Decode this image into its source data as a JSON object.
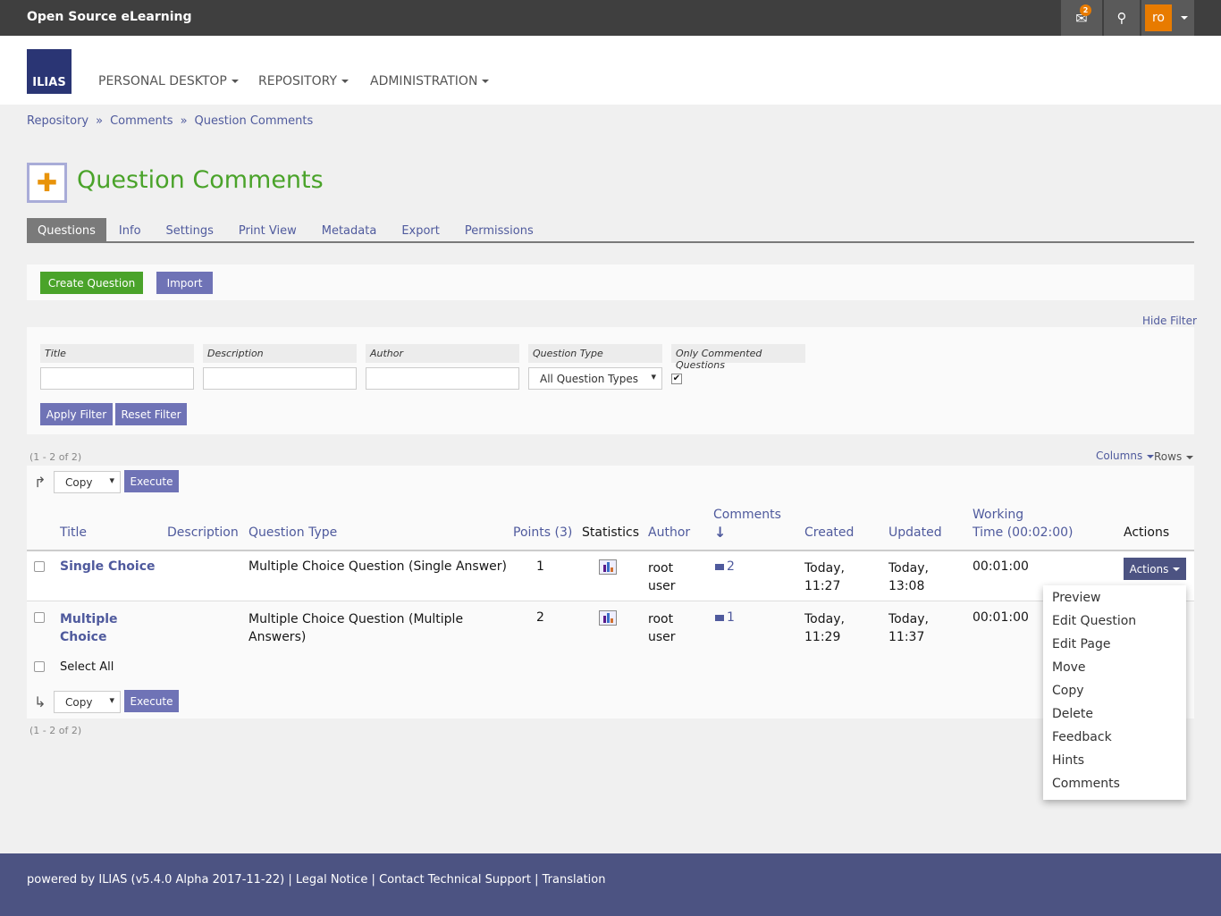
{
  "topbar": {
    "title": "Open Source eLearning",
    "mail_count": "2",
    "user_initials": "ro"
  },
  "header": {
    "logo": "ILIAS",
    "nav": [
      "PERSONAL DESKTOP",
      "REPOSITORY",
      "ADMINISTRATION"
    ]
  },
  "breadcrumb": [
    "Repository",
    "Comments",
    "Question Comments"
  ],
  "page": {
    "title": "Question Comments",
    "icon": "puzzle-icon"
  },
  "tabs": [
    "Questions",
    "Info",
    "Settings",
    "Print View",
    "Metadata",
    "Export",
    "Permissions"
  ],
  "toolbar": {
    "create": "Create Question",
    "import": "Import"
  },
  "filter": {
    "hide": "Hide Filter",
    "labels": [
      "Title",
      "Description",
      "Author",
      "Question Type",
      "Only Commented Questions"
    ],
    "values": [
      "",
      "",
      ""
    ],
    "question_type": "All Question Types",
    "only_commented": true,
    "apply": "Apply Filter",
    "reset": "Reset Filter"
  },
  "table": {
    "range": "(1 - 2 of 2)",
    "columns_link": "Columns",
    "rows_link": "Rows",
    "multi_action": "Copy",
    "execute": "Execute",
    "select_all": "Select All",
    "headers": {
      "title": "Title",
      "description": "Description",
      "type": "Question Type",
      "points": "Points (3)",
      "statistics": "Statistics",
      "author": "Author",
      "comments": "Comments",
      "created": "Created",
      "updated": "Updated",
      "working_time_1": "Working",
      "working_time_2": "Time (00:02:00)",
      "actions": "Actions"
    },
    "rows": [
      {
        "title": "Single Choice",
        "type": "Multiple Choice Question (Single Answer)",
        "points": "1",
        "author1": "root",
        "author2": "user",
        "comments": "2",
        "created1": "Today,",
        "created2": "11:27",
        "updated1": "Today,",
        "updated2": "13:08",
        "time": "00:01:00"
      },
      {
        "title1": "Multiple",
        "title2": "Choice",
        "type1": "Multiple Choice Question (Multiple",
        "type2": "Answers)",
        "points": "2",
        "author1": "root",
        "author2": "user",
        "comments": "1",
        "created1": "Today,",
        "created2": "11:29",
        "updated1": "Today,",
        "updated2": "11:37",
        "time": "00:01:00"
      }
    ],
    "actions_button": "Actions",
    "actions_menu": [
      "Preview",
      "Edit Question",
      "Edit Page",
      "Move",
      "Copy",
      "Delete",
      "Feedback",
      "Hints",
      "Comments"
    ]
  },
  "footer": {
    "powered": "powered by ILIAS (v5.4.0 Alpha 2017-11-22)",
    "links": [
      "Legal Notice",
      "Contact Technical Support",
      "Translation"
    ]
  }
}
